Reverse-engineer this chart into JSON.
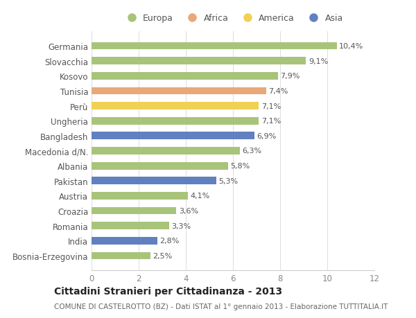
{
  "countries": [
    "Germania",
    "Slovacchia",
    "Kosovo",
    "Tunisia",
    "Perù",
    "Ungheria",
    "Bangladesh",
    "Macedonia d/N.",
    "Albania",
    "Pakistan",
    "Austria",
    "Croazia",
    "Romania",
    "India",
    "Bosnia-Erzegovina"
  ],
  "values": [
    10.4,
    9.1,
    7.9,
    7.4,
    7.1,
    7.1,
    6.9,
    6.3,
    5.8,
    5.3,
    4.1,
    3.6,
    3.3,
    2.8,
    2.5
  ],
  "labels": [
    "10,4%",
    "9,1%",
    "7,9%",
    "7,4%",
    "7,1%",
    "7,1%",
    "6,9%",
    "6,3%",
    "5,8%",
    "5,3%",
    "4,1%",
    "3,6%",
    "3,3%",
    "2,8%",
    "2,5%"
  ],
  "continents": [
    "Europa",
    "Europa",
    "Europa",
    "Africa",
    "America",
    "Europa",
    "Asia",
    "Europa",
    "Europa",
    "Asia",
    "Europa",
    "Europa",
    "Europa",
    "Asia",
    "Europa"
  ],
  "colors": {
    "Europa": "#a8c47a",
    "Africa": "#e8a878",
    "America": "#f0d055",
    "Asia": "#6080c0"
  },
  "xlim": [
    0,
    12
  ],
  "xticks": [
    0,
    2,
    4,
    6,
    8,
    10,
    12
  ],
  "title": "Cittadini Stranieri per Cittadinanza - 2013",
  "subtitle": "COMUNE DI CASTELROTTO (BZ) - Dati ISTAT al 1° gennaio 2013 - Elaborazione TUTTITALIA.IT",
  "background_color": "#ffffff",
  "bar_height": 0.5,
  "label_fontsize": 8,
  "ytick_fontsize": 8.5,
  "xtick_fontsize": 8.5,
  "title_fontsize": 10,
  "subtitle_fontsize": 7.5,
  "legend_fontsize": 9
}
